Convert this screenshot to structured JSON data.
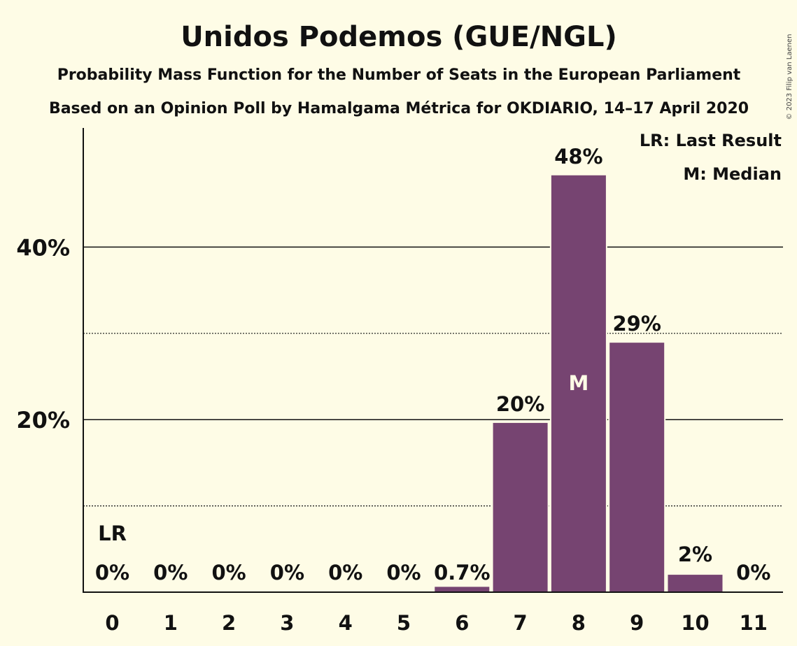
{
  "chart_data": {
    "type": "bar",
    "title": "Unidos Podemos (GUE/NGL)",
    "subtitle1": "Probability Mass Function for the Number of Seats in the European Parliament",
    "subtitle2": "Based on an Opinion Poll by Hamalgama Métrica for OKDIARIO, 14–17 April 2020",
    "categories": [
      "0",
      "1",
      "2",
      "3",
      "4",
      "5",
      "6",
      "7",
      "8",
      "9",
      "10",
      "11"
    ],
    "values": [
      0,
      0,
      0,
      0,
      0,
      0,
      0.7,
      19.7,
      48.4,
      29.0,
      2.1,
      0
    ],
    "value_labels": [
      "0%",
      "0%",
      "0%",
      "0%",
      "0%",
      "0%",
      "0.7%",
      "20%",
      "48%",
      "29%",
      "2%",
      "0%"
    ],
    "ylim": [
      0,
      53
    ],
    "yticks": [
      20,
      40
    ],
    "ytick_labels": [
      "20%",
      "40%"
    ],
    "minor_gridlines": [
      10,
      30
    ],
    "last_result_index": 0,
    "last_result_marker": "LR",
    "median_index": 8,
    "median_marker": "M",
    "legend": [
      "LR: Last Result",
      "M: Median"
    ],
    "legend_position": "top-right",
    "bar_color": "#764471",
    "copyright": "© 2023 Filip van Laenen"
  }
}
